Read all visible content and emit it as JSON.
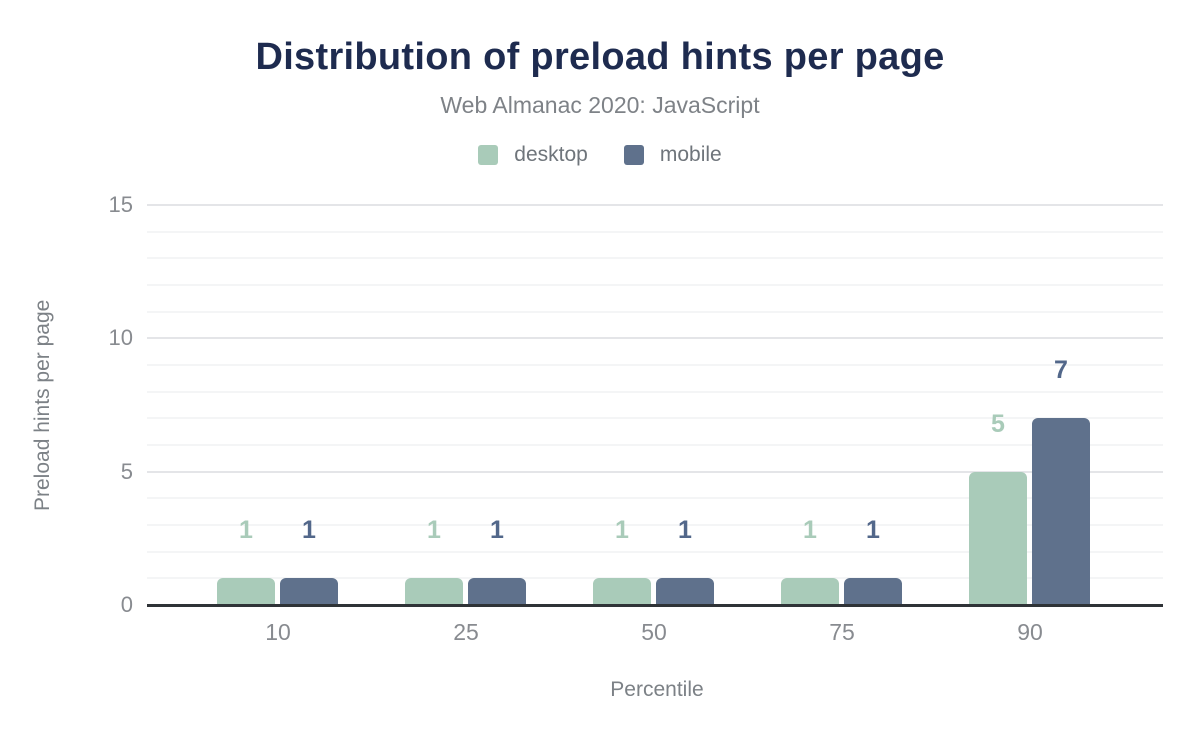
{
  "header": {
    "title": "Distribution of preload hints per page",
    "subtitle": "Web Almanac 2020: JavaScript"
  },
  "colors": {
    "title": "#1e2b4f",
    "muted_text": "#7c8186",
    "tick_text": "#888b90",
    "axis_line": "#2f3337",
    "major_gridline": "#e4e5e8",
    "minor_gridline": "#f4f5f6",
    "desktop": "#a9cbb9",
    "mobile": "#5f718c"
  },
  "chart_data": {
    "type": "bar",
    "title": "Distribution of preload hints per page",
    "subtitle": "Web Almanac 2020: JavaScript",
    "categories": [
      "10",
      "25",
      "50",
      "75",
      "90"
    ],
    "series": [
      {
        "name": "desktop",
        "color": "#a9cbb9",
        "label_color": "#a9cbb9",
        "values": [
          1,
          1,
          1,
          1,
          5
        ]
      },
      {
        "name": "mobile",
        "color": "#5f718c",
        "label_color": "#52678a",
        "values": [
          1,
          1,
          1,
          1,
          7
        ]
      }
    ],
    "xlabel": "Percentile",
    "ylabel": "Preload hints per page",
    "yticks": [
      0,
      5,
      10,
      15
    ],
    "ylim": [
      0,
      15
    ],
    "minor_grid_step": 1,
    "grid": "horizontal",
    "legend_position": "top",
    "bar_value_labels_shown": true
  }
}
